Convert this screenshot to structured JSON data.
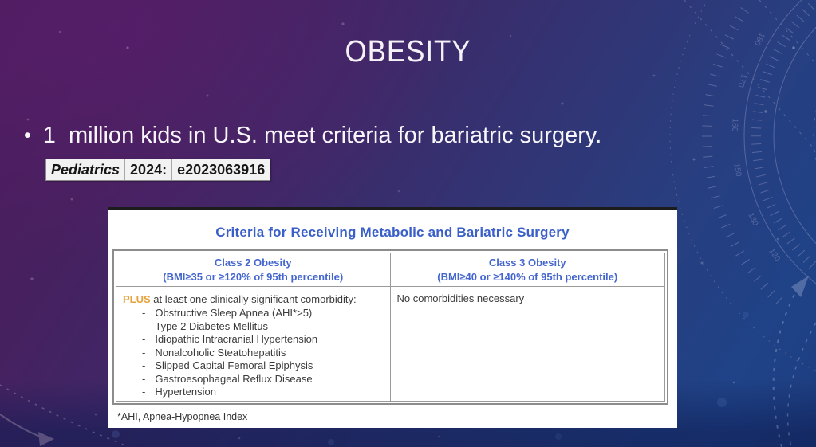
{
  "slide": {
    "title": "OBESITY",
    "bullet_marker": "•",
    "bullet_text": "1  million kids in U.S. meet criteria for bariatric surgery.",
    "citation": {
      "journal": "Pediatrics",
      "year": "2024:",
      "article_id": "e2023063916"
    }
  },
  "figure": {
    "title": "Criteria for Receiving Metabolic and Bariatric Surgery",
    "columns": [
      {
        "name": "Class 2 Obesity",
        "criteria": "(BMI≥35 or ≥120% of 95th percentile)"
      },
      {
        "name": "Class 3 Obesity",
        "criteria": "(BMI≥40 or ≥140% of 95th percentile)"
      }
    ],
    "class2_lead_highlight": "PLUS",
    "class2_lead_rest": " at least one clinically significant comorbidity:",
    "list_marker": "-",
    "class2_items": [
      "Obstructive Sleep Apnea (AHI*>5)",
      "Type 2 Diabetes Mellitus",
      "Idiopathic Intracranial Hypertension",
      "Nonalcoholic Steatohepatitis",
      "Slipped Capital Femoral Epiphysis",
      "Gastroesophageal Reflux Disease",
      "Hypertension"
    ],
    "class3_text": "No comorbidities necessary",
    "footnote": "*AHI, Apnea-Hypopnea Index"
  },
  "decor": {
    "gauge_numbers": [
      "180",
      "170",
      "160",
      "150",
      "130",
      "120"
    ]
  },
  "colors": {
    "figure_title_blue": "#3b5fc8",
    "header_blue": "#4466ce",
    "plus_orange": "#e8a23c",
    "table_border_gray": "#8c8c8c",
    "bg_purple": "#4c1c5e",
    "bg_blue": "#1f4287",
    "citation_bg": "#f2f2f2",
    "text_white": "#f4f2f7"
  }
}
